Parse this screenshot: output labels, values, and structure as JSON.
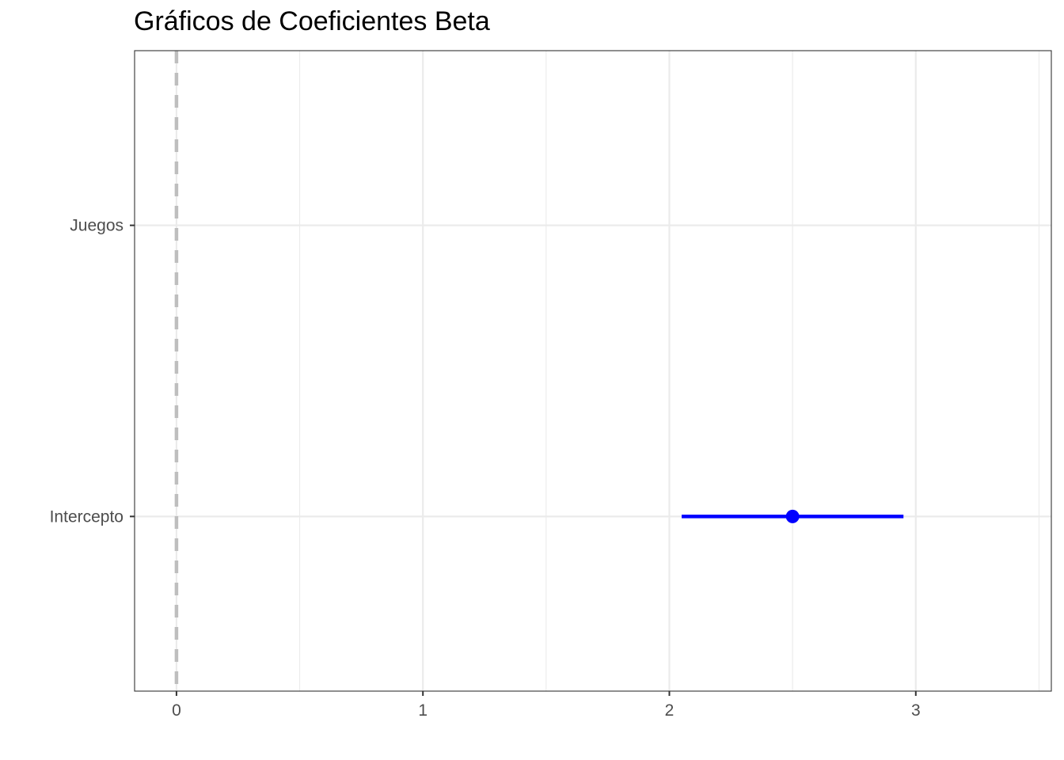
{
  "chart_data": {
    "type": "forest",
    "title": "Gráficos de Coeficientes Beta",
    "xlabel": "",
    "ylabel": "",
    "xlim": [
      -0.17,
      3.55
    ],
    "x_ticks": [
      0,
      1,
      2,
      3
    ],
    "x_tick_labels": [
      "0",
      "1",
      "2",
      "3"
    ],
    "categories": [
      "Intercepto",
      "Juegos"
    ],
    "estimates": [
      {
        "term": "Intercepto",
        "estimate": 2.5,
        "low": 2.05,
        "high": 2.95
      },
      {
        "term": "Juegos",
        "estimate": null,
        "low": null,
        "high": null
      }
    ],
    "reference_line": {
      "x": 0,
      "style": "dashed",
      "color": "#bebebe"
    },
    "grid": true,
    "legend": "none",
    "colors": {
      "estimate": "#0000ff",
      "grid": "#ebebeb",
      "panel_border": "#333333"
    }
  }
}
